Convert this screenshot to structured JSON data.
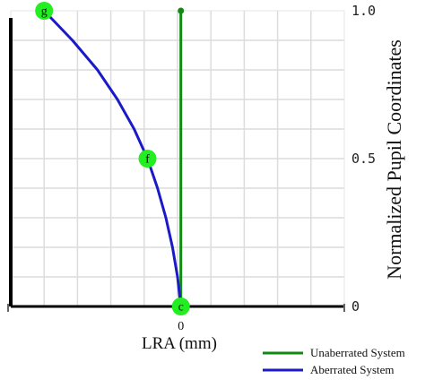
{
  "chart_data": {
    "type": "line",
    "xlabel": "LRA (mm)",
    "ylabel": "Normalized Pupil Coordinates",
    "ylim": [
      0,
      1.0
    ],
    "xlim": [
      -1.02,
      0.98
    ],
    "y_ticks": [
      {
        "value": 0,
        "label": "0"
      },
      {
        "value": 0.5,
        "label": "0.5"
      },
      {
        "value": 1.0,
        "label": "1.0"
      }
    ],
    "x_ticks": [
      {
        "value": 0,
        "label": "0"
      }
    ],
    "grid": true,
    "legend_position": "bottom-right",
    "series": [
      {
        "name": "Unaberrated System",
        "color": "#118a11",
        "points": [
          [
            0,
            0
          ],
          [
            0,
            1.0
          ]
        ]
      },
      {
        "name": "Aberrated System",
        "color": "#1a1ac8",
        "points": [
          [
            0,
            0
          ],
          [
            -0.02,
            0.1
          ],
          [
            -0.05,
            0.2
          ],
          [
            -0.09,
            0.3
          ],
          [
            -0.14,
            0.4
          ],
          [
            -0.2,
            0.5
          ],
          [
            -0.28,
            0.6
          ],
          [
            -0.38,
            0.7
          ],
          [
            -0.5,
            0.8
          ],
          [
            -0.65,
            0.9
          ],
          [
            -0.82,
            1.0
          ]
        ]
      }
    ],
    "markers": [
      {
        "label": "c",
        "x": 0,
        "y": 0
      },
      {
        "label": "f",
        "x": -0.2,
        "y": 0.5
      },
      {
        "label": "g",
        "x": -0.82,
        "y": 1.0
      }
    ]
  }
}
